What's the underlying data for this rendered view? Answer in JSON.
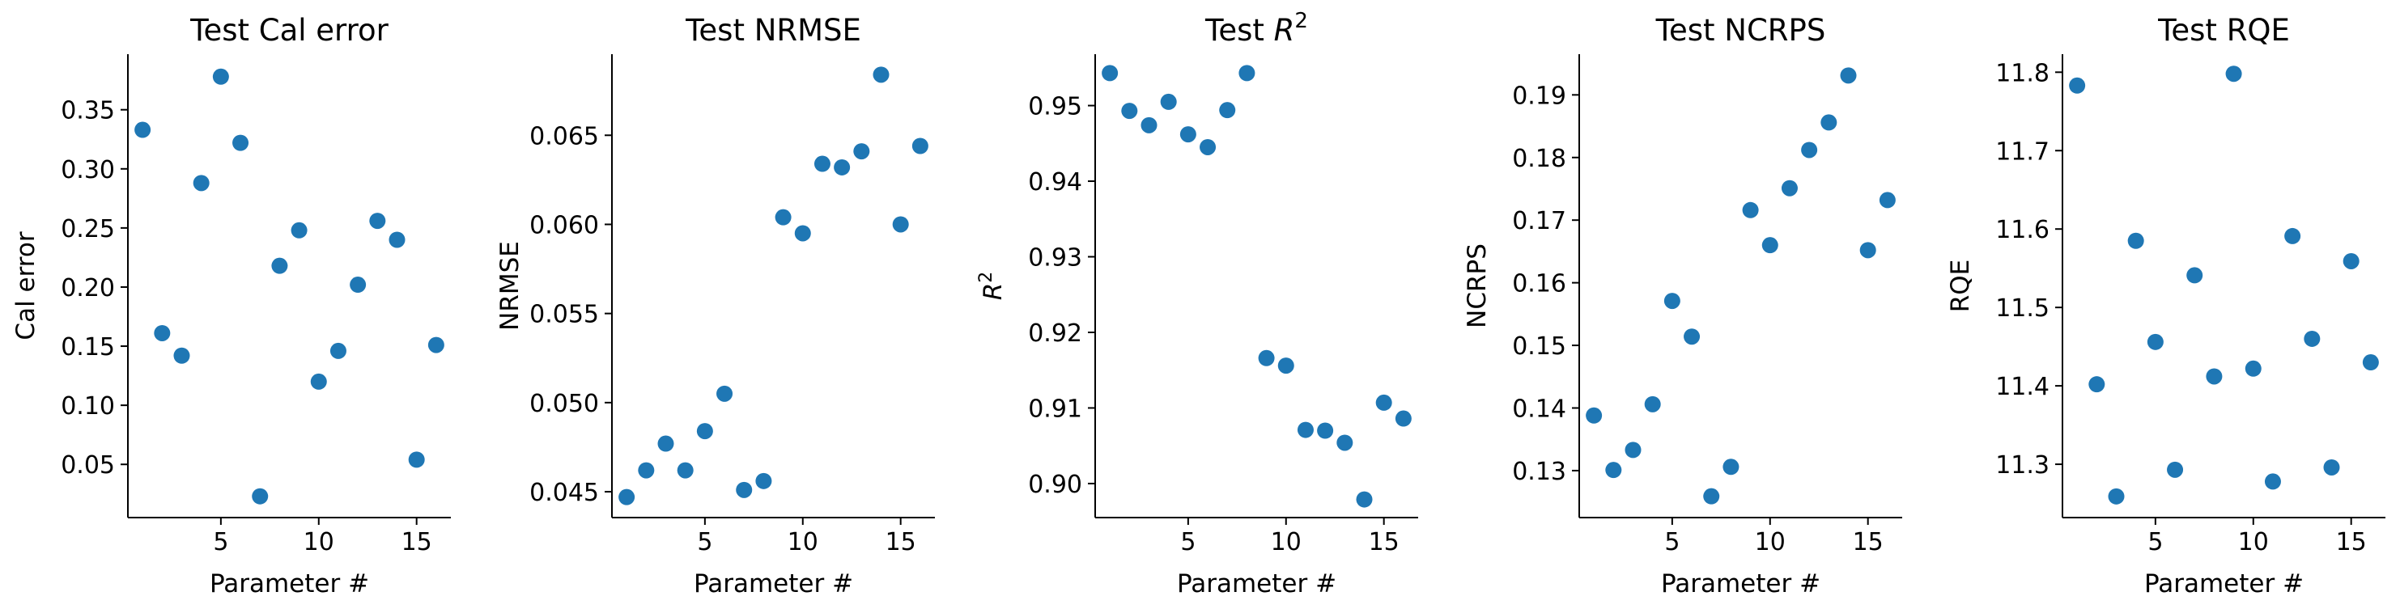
{
  "chart_data": [
    {
      "type": "scatter",
      "title": "Test Cal error",
      "xlabel": "Parameter #",
      "ylabel": "Cal error",
      "x": [
        1,
        2,
        3,
        4,
        5,
        6,
        7,
        8,
        9,
        10,
        11,
        12,
        13,
        14,
        15,
        16
      ],
      "y": [
        0.333,
        0.161,
        0.142,
        0.288,
        0.378,
        0.322,
        0.023,
        0.218,
        0.248,
        0.12,
        0.146,
        0.202,
        0.256,
        0.24,
        0.054,
        0.151
      ],
      "xlim": [
        0.25,
        16.75
      ],
      "ylim": [
        0.005,
        0.397
      ],
      "xticks": [
        5,
        10,
        15
      ],
      "xtick_labels": [
        "5",
        "10",
        "15"
      ],
      "yticks": [
        0.05,
        0.1,
        0.15,
        0.2,
        0.25,
        0.3,
        0.35
      ],
      "ytick_labels": [
        "0.05",
        "0.10",
        "0.15",
        "0.20",
        "0.25",
        "0.30",
        "0.35"
      ],
      "color": "#1f77b4"
    },
    {
      "type": "scatter",
      "title": "Test NRMSE",
      "xlabel": "Parameter #",
      "ylabel": "NRMSE",
      "x": [
        1,
        2,
        3,
        4,
        5,
        6,
        7,
        8,
        9,
        10,
        11,
        12,
        13,
        14,
        15,
        16
      ],
      "y": [
        0.0447,
        0.0462,
        0.0477,
        0.0462,
        0.0484,
        0.0505,
        0.0451,
        0.0456,
        0.0604,
        0.0595,
        0.0634,
        0.0632,
        0.0641,
        0.0684,
        0.06,
        0.0644
      ],
      "xlim": [
        0.25,
        16.75
      ],
      "ylim": [
        0.04355,
        0.06955
      ],
      "xticks": [
        5,
        10,
        15
      ],
      "xtick_labels": [
        "5",
        "10",
        "15"
      ],
      "yticks": [
        0.045,
        0.05,
        0.055,
        0.06,
        0.065
      ],
      "ytick_labels": [
        "0.045",
        "0.050",
        "0.055",
        "0.060",
        "0.065"
      ],
      "color": "#1f77b4"
    },
    {
      "type": "scatter",
      "title": "Test R²",
      "title_plain": "Test ",
      "title_math": "R",
      "title_sup": "2",
      "xlabel": "Parameter #",
      "ylabel": "R",
      "ylabel_sup": "2",
      "x": [
        1,
        2,
        3,
        4,
        5,
        6,
        7,
        8,
        9,
        10,
        11,
        12,
        13,
        14,
        15,
        16
      ],
      "y": [
        0.9543,
        0.9493,
        0.9474,
        0.9505,
        0.9462,
        0.9445,
        0.9494,
        0.9543,
        0.9166,
        0.9156,
        0.9071,
        0.907,
        0.9054,
        0.8979,
        0.9107,
        0.9086
      ],
      "xlim": [
        0.25,
        16.75
      ],
      "ylim": [
        0.8955,
        0.9568
      ],
      "xticks": [
        5,
        10,
        15
      ],
      "xtick_labels": [
        "5",
        "10",
        "15"
      ],
      "yticks": [
        0.9,
        0.91,
        0.92,
        0.93,
        0.94,
        0.95
      ],
      "ytick_labels": [
        "0.90",
        "0.91",
        "0.92",
        "0.93",
        "0.94",
        "0.95"
      ],
      "color": "#1f77b4"
    },
    {
      "type": "scatter",
      "title": "Test NCRPS",
      "xlabel": "Parameter #",
      "ylabel": "NCRPS",
      "x": [
        1,
        2,
        3,
        4,
        5,
        6,
        7,
        8,
        9,
        10,
        11,
        12,
        13,
        14,
        15,
        16
      ],
      "y": [
        0.1388,
        0.1301,
        0.1333,
        0.1406,
        0.1571,
        0.1514,
        0.1259,
        0.1306,
        0.1716,
        0.166,
        0.1751,
        0.1812,
        0.1856,
        0.1931,
        0.1652,
        0.1732
      ],
      "xlim": [
        0.25,
        16.75
      ],
      "ylim": [
        0.1225,
        0.1965
      ],
      "xticks": [
        5,
        10,
        15
      ],
      "xtick_labels": [
        "5",
        "10",
        "15"
      ],
      "yticks": [
        0.13,
        0.14,
        0.15,
        0.16,
        0.17,
        0.18,
        0.19
      ],
      "ytick_labels": [
        "0.13",
        "0.14",
        "0.15",
        "0.16",
        "0.17",
        "0.18",
        "0.19"
      ],
      "color": "#1f77b4"
    },
    {
      "type": "scatter",
      "title": "Test RQE",
      "xlabel": "Parameter #",
      "ylabel": "RQE",
      "x": [
        1,
        2,
        3,
        4,
        5,
        6,
        7,
        8,
        9,
        10,
        11,
        12,
        13,
        14,
        15,
        16
      ],
      "y": [
        11.783,
        11.402,
        11.259,
        11.585,
        11.456,
        11.293,
        11.541,
        11.412,
        11.798,
        11.422,
        11.278,
        11.591,
        11.46,
        11.296,
        11.559,
        11.43
      ],
      "xlim": [
        0.25,
        16.75
      ],
      "ylim": [
        11.232,
        11.823
      ],
      "xticks": [
        5,
        10,
        15
      ],
      "xtick_labels": [
        "5",
        "10",
        "15"
      ],
      "yticks": [
        11.3,
        11.4,
        11.5,
        11.6,
        11.7,
        11.8
      ],
      "ytick_labels": [
        "11.3",
        "11.4",
        "11.5",
        "11.6",
        "11.7",
        "11.8"
      ],
      "color": "#1f77b4"
    }
  ]
}
